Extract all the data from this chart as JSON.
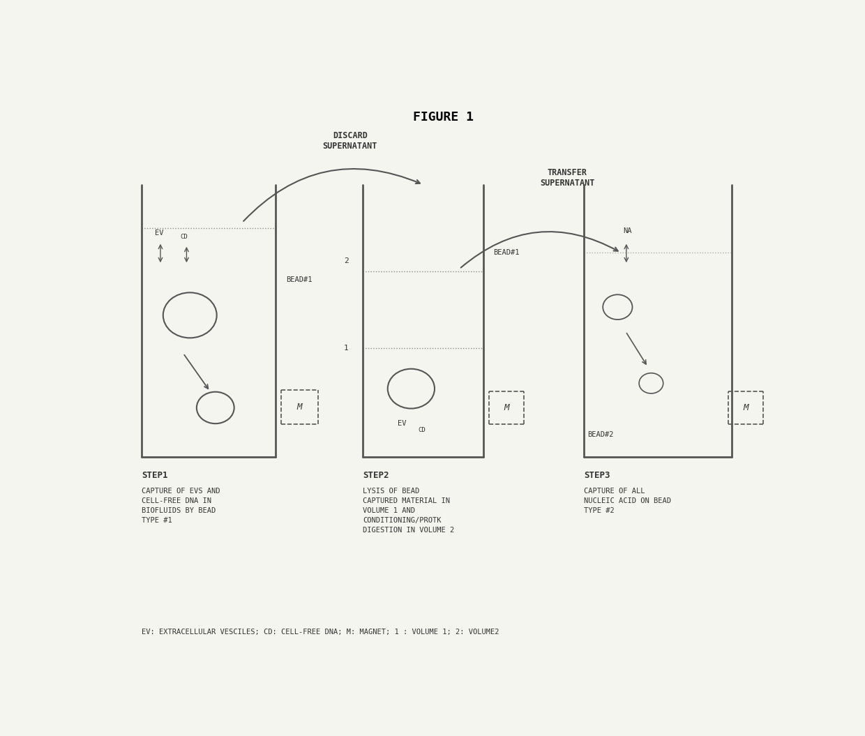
{
  "title": "FIGURE 1",
  "title_fontsize": 13,
  "title_fontweight": "bold",
  "bg_color": "#f5f5f0",
  "border_color": "#555555",
  "text_color": "#333333",
  "figure_width": 12.4,
  "figure_height": 10.55,
  "discard_text": "DISCARD\nSUPERNATANT",
  "transfer_text": "TRANSFER\nSUPERNATANT",
  "step1_title": "STEP1",
  "step1_text": "CAPTURE OF EVS AND\nCELL-FREE DNA IN\nBIOFLUIDS BY BEAD\nTYPE #1",
  "step2_title": "STEP2",
  "step2_text": "LYSIS OF BEAD\nCAPTURED MATERIAL IN\nVOLUME 1 AND\nCONDITIONING/PROTK\nDIGESTION IN VOLUME 2",
  "step3_title": "STEP3",
  "step3_text": "CAPTURE OF ALL\nNUCLEIC ACID ON BEAD\nTYPE #2",
  "legend_text": "EV: EXTRACELLULAR VESCILES; CD: CELL-FREE DNA; M: MAGNET; 1 : VOLUME 1; 2: VOLUME2",
  "font_family": "monospace"
}
